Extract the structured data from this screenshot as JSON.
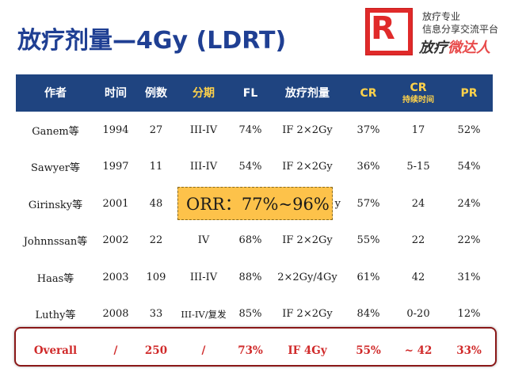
{
  "slide": {
    "title": "放疗剂量—4Gy (LDRT)"
  },
  "logo": {
    "letter": "R",
    "line1": "放疗专业",
    "line2": "信息分享交流平台",
    "brand_part1": "放疗",
    "brand_accent": "微达人"
  },
  "table": {
    "headers": [
      {
        "label": "作者",
        "sub": ""
      },
      {
        "label": "时间",
        "sub": ""
      },
      {
        "label": "例数",
        "sub": ""
      },
      {
        "label": "分期",
        "sub": ""
      },
      {
        "label": "FL",
        "sub": ""
      },
      {
        "label": "放疗剂量",
        "sub": ""
      },
      {
        "label": "CR",
        "sub": ""
      },
      {
        "label": "CR",
        "sub": "持续时间"
      },
      {
        "label": "PR",
        "sub": ""
      }
    ],
    "rows": [
      [
        "Ganem等",
        "1994",
        "27",
        "III-IV",
        "74%",
        "IF 2×2Gy",
        "37%",
        "17",
        "52%"
      ],
      [
        "Sawyer等",
        "1997",
        "11",
        "III-IV",
        "54%",
        "IF 2×2Gy",
        "36%",
        "5-15",
        "54%"
      ],
      [
        "Girinsky等",
        "2001",
        "48",
        "",
        "",
        "",
        "57%",
        "24",
        "24%"
      ],
      [
        "Johnnssan等",
        "2002",
        "22",
        "IV",
        "68%",
        "IF 2×2Gy",
        "55%",
        "22",
        "22%"
      ],
      [
        "Haas等",
        "2003",
        "109",
        "III-IV",
        "88%",
        "2×2Gy/4Gy",
        "61%",
        "42",
        "31%"
      ],
      [
        "Luthy等",
        "2008",
        "33",
        "III-IV/复发",
        "85%",
        "IF 2×2Gy",
        "84%",
        "0-20",
        "12%"
      ]
    ],
    "girinsky_partial": "y",
    "overall": [
      "Overall",
      "/",
      "250",
      "/",
      "73%",
      "IF 4Gy",
      "55%",
      "~ 42",
      "33%"
    ]
  },
  "callout": {
    "text": "ORR：77%~96%"
  },
  "colors": {
    "title_blue": "#1f3f93",
    "header_bg": "#1f4480",
    "header_highlight": "#ffd24a",
    "overall_red": "#d02a2a",
    "callout_bg": "#fdc24a"
  }
}
